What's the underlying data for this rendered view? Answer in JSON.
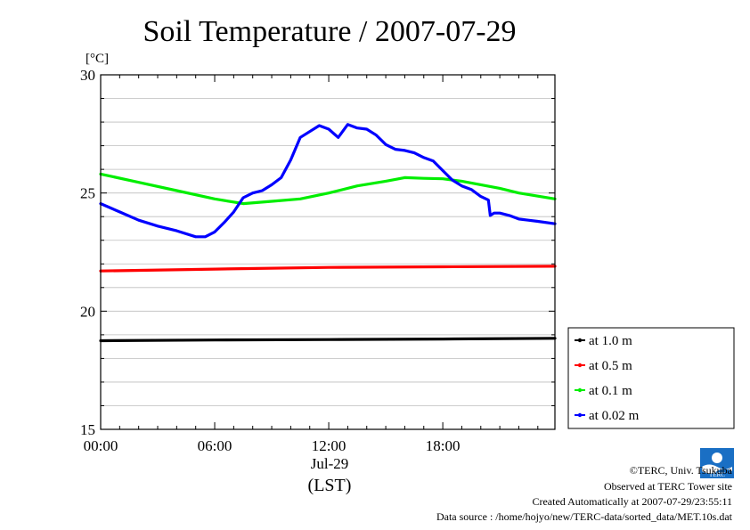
{
  "chart_data": {
    "type": "line",
    "title": "Soil Temperature / 2007-07-29",
    "ylabel": "[°C]",
    "xlabel": "(LST)",
    "date_label": "Jul-29",
    "ylim": [
      15,
      30
    ],
    "yticks": [
      {
        "value": 15,
        "label": "15"
      },
      {
        "value": 20,
        "label": "20"
      },
      {
        "value": 25,
        "label": "25"
      },
      {
        "value": 30,
        "label": "30"
      }
    ],
    "xlim": [
      0,
      23.9
    ],
    "xticks": [
      {
        "value": 0,
        "label": "00:00"
      },
      {
        "value": 6,
        "label": "06:00"
      },
      {
        "value": 12,
        "label": "12:00"
      },
      {
        "value": 18,
        "label": "18:00"
      }
    ],
    "grid": true,
    "legend_position": "right",
    "series": [
      {
        "name": "at 1.0 m",
        "color": "#000000",
        "x": [
          0,
          6,
          12,
          18,
          23.9
        ],
        "y": [
          18.75,
          18.78,
          18.8,
          18.82,
          18.85
        ]
      },
      {
        "name": "at 0.5 m",
        "color": "#ff0000",
        "x": [
          0,
          6,
          12,
          18,
          23.9
        ],
        "y": [
          21.7,
          21.78,
          21.85,
          21.88,
          21.9
        ]
      },
      {
        "name": "at 0.1 m",
        "color": "#00ee00",
        "x": [
          0,
          2,
          4,
          6,
          7.5,
          9,
          10.5,
          12,
          13.5,
          15,
          16,
          17,
          18,
          19,
          20,
          21,
          22,
          23.9
        ],
        "y": [
          25.8,
          25.45,
          25.1,
          24.75,
          24.55,
          24.65,
          24.75,
          25.0,
          25.3,
          25.5,
          25.65,
          25.62,
          25.6,
          25.5,
          25.35,
          25.2,
          25.0,
          24.75
        ]
      },
      {
        "name": "at 0.02 m",
        "color": "#0000ff",
        "x": [
          0,
          1,
          2,
          3,
          4,
          5,
          5.5,
          6,
          6.5,
          7,
          7.5,
          8,
          8.5,
          9,
          9.5,
          10,
          10.5,
          11,
          11.5,
          12,
          12.5,
          13,
          13.5,
          14,
          14.5,
          15,
          15.5,
          16,
          16.5,
          17,
          17.5,
          18,
          18.5,
          19,
          19.5,
          20,
          20.4,
          20.5,
          20.7,
          21,
          21.5,
          22,
          22.5,
          23,
          23.9
        ],
        "y": [
          24.55,
          24.2,
          23.85,
          23.6,
          23.4,
          23.15,
          23.15,
          23.35,
          23.75,
          24.2,
          24.8,
          25.0,
          25.1,
          25.35,
          25.65,
          26.4,
          27.35,
          27.6,
          27.85,
          27.7,
          27.35,
          27.9,
          27.75,
          27.7,
          27.45,
          27.05,
          26.85,
          26.8,
          26.7,
          26.5,
          26.35,
          25.95,
          25.55,
          25.3,
          25.15,
          24.85,
          24.7,
          24.05,
          24.15,
          24.15,
          24.05,
          23.9,
          23.85,
          23.8,
          23.7
        ]
      }
    ]
  },
  "credits": {
    "copyright": "©TERC, Univ. Tsukuba",
    "observed": "Observed at TERC Tower site",
    "created": "Created Automatically at 2007-07-29/23:55:11",
    "source": "Data source : /home/hojyo/new/TERC-data/sorted_data/MET.10s.dat",
    "logo_text": "TERC"
  }
}
